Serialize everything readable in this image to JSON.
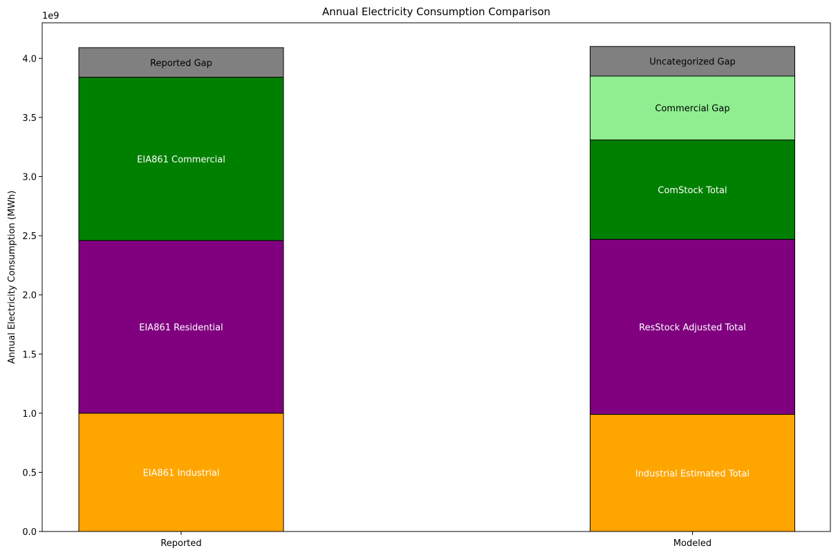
{
  "chart_data": {
    "type": "bar",
    "stacked": true,
    "title": "Annual Electricity Consumption Comparison",
    "ylabel": "Annual Electricity Consumption (MWh)",
    "xlabel": "",
    "y_offset_label": "1e9",
    "ylim": [
      0,
      4.3
    ],
    "y_ticks": [
      "0.0",
      "0.5",
      "1.0",
      "1.5",
      "2.0",
      "2.5",
      "3.0",
      "3.5",
      "4.0"
    ],
    "grid": false,
    "categories": [
      "Reported",
      "Modeled"
    ],
    "bars": [
      {
        "category": "Reported",
        "segments": [
          {
            "label": "EIA861 Industrial",
            "value": 1.0,
            "color": "#ffa500",
            "text_color": "#ffffff"
          },
          {
            "label": "EIA861 Residential",
            "value": 1.46,
            "color": "#800080",
            "text_color": "#ffffff"
          },
          {
            "label": "EIA861 Commercial",
            "value": 1.38,
            "color": "#008000",
            "text_color": "#ffffff"
          },
          {
            "label": "Reported Gap",
            "value": 0.25,
            "color": "#808080",
            "text_color": "#000000"
          }
        ]
      },
      {
        "category": "Modeled",
        "segments": [
          {
            "label": "Industrial Estimated Total",
            "value": 0.99,
            "color": "#ffa500",
            "text_color": "#ffffff"
          },
          {
            "label": "ResStock Adjusted Total",
            "value": 1.48,
            "color": "#800080",
            "text_color": "#ffffff"
          },
          {
            "label": "ComStock Total",
            "value": 0.84,
            "color": "#008000",
            "text_color": "#ffffff"
          },
          {
            "label": "Commercial Gap",
            "value": 0.54,
            "color": "#90ee90",
            "text_color": "#000000"
          },
          {
            "label": "Uncategorized Gap",
            "value": 0.25,
            "color": "#808080",
            "text_color": "#000000"
          }
        ]
      }
    ]
  }
}
